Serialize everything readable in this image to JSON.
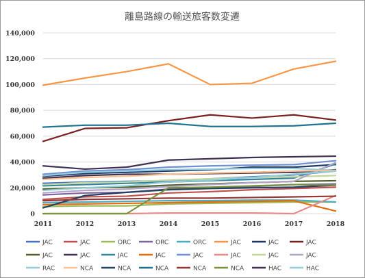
{
  "chart_data": {
    "type": "line",
    "title": "離島路線の輸送旅客数変遷",
    "xlabel": "",
    "ylabel": "",
    "ylim": [
      0,
      140000
    ],
    "y_ticks": [
      0,
      20000,
      40000,
      60000,
      80000,
      100000,
      120000,
      140000
    ],
    "y_tick_labels": [
      "0",
      "20,000",
      "40,000",
      "60,000",
      "80,000",
      "100,000",
      "120,000",
      "140,000"
    ],
    "grid": true,
    "legend_position": "bottom",
    "categories": [
      "2011",
      "2012",
      "2013",
      "2014",
      "2015",
      "2016",
      "2017",
      "2018"
    ],
    "series": [
      {
        "name": "JAC",
        "color": "#4472c4",
        "values": [
          23500,
          24500,
          25000,
          25500,
          27000,
          28500,
          30000,
          33000
        ]
      },
      {
        "name": "JAC",
        "color": "#c0504d",
        "values": [
          11000,
          13000,
          13500,
          16000,
          17000,
          18500,
          19500,
          20500
        ]
      },
      {
        "name": "ORC",
        "color": "#9bbb59",
        "values": [
          5500,
          6000,
          6000,
          7500,
          8000,
          8500,
          9000,
          9000
        ]
      },
      {
        "name": "ORC",
        "color": "#8064a2",
        "values": [
          14500,
          16000,
          16500,
          19000,
          20000,
          21000,
          22500,
          23000
        ]
      },
      {
        "name": "ORC",
        "color": "#4bacc6",
        "values": [
          8500,
          9000,
          9500,
          10000,
          10000,
          10500,
          10500,
          9000
        ]
      },
      {
        "name": "JAC",
        "color": "#f79646",
        "values": [
          99500,
          105000,
          110000,
          116000,
          100000,
          101000,
          112000,
          118000
        ]
      },
      {
        "name": "JAC",
        "color": "#1f3864",
        "values": [
          29000,
          31000,
          32000,
          33000,
          34000,
          36000,
          36000,
          38000
        ]
      },
      {
        "name": "JAC",
        "color": "#7b2020",
        "values": [
          56000,
          66000,
          66500,
          72000,
          76500,
          74000,
          76500,
          72500
        ]
      },
      {
        "name": "JAC",
        "color": "#4f6228",
        "values": [
          19000,
          20000,
          20500,
          22000,
          23000,
          24000,
          25000,
          25500
        ]
      },
      {
        "name": "JAC",
        "color": "#3f3151",
        "values": [
          27500,
          29500,
          30500,
          30500,
          31000,
          31500,
          32000,
          34000
        ]
      },
      {
        "name": "JAC",
        "color": "#31859c",
        "values": [
          21500,
          22500,
          23500,
          24500,
          25500,
          26500,
          27500,
          38500
        ]
      },
      {
        "name": "JAC",
        "color": "#e46c0a",
        "values": [
          7000,
          7500,
          8000,
          8500,
          9000,
          9500,
          10000,
          2000
        ]
      },
      {
        "name": "JAC",
        "color": "#6f8fd6",
        "values": [
          30500,
          33000,
          34000,
          36000,
          37000,
          37500,
          38000,
          41000
        ]
      },
      {
        "name": "JAC",
        "color": "#e58a87",
        "values": [
          0,
          0,
          0,
          500,
          500,
          500,
          0,
          14000
        ]
      },
      {
        "name": "JAC",
        "color": "#c3d69b",
        "values": [
          22500,
          24000,
          24500,
          26000,
          27000,
          28000,
          28500,
          29500
        ]
      },
      {
        "name": "JAC",
        "color": "#b3a2c7",
        "values": [
          16000,
          18000,
          19000,
          21000,
          22500,
          24000,
          25000,
          39500
        ]
      },
      {
        "name": "RAC",
        "color": "#93cddd",
        "values": [
          29500,
          32000,
          33000,
          34000,
          34500,
          35000,
          35000,
          33500
        ]
      },
      {
        "name": "NCA",
        "color": "#fac090",
        "values": [
          26500,
          28000,
          29000,
          30500,
          31500,
          32000,
          33000,
          33500
        ]
      },
      {
        "name": "NCA",
        "color": "#244062",
        "values": [
          4500,
          14000,
          16500,
          18500,
          19500,
          20000,
          20500,
          22000
        ]
      },
      {
        "name": "NCA",
        "color": "#1f7391",
        "values": [
          67000,
          68500,
          68500,
          70000,
          67500,
          67500,
          68000,
          70000
        ]
      },
      {
        "name": "NCA",
        "color": "#953735",
        "values": [
          10000,
          11000,
          11500,
          12000,
          12000,
          12500,
          13000,
          13500
        ]
      },
      {
        "name": "NCA",
        "color": "#77933c",
        "values": [
          0,
          0,
          0,
          20000,
          20500,
          21500,
          22500,
          22000
        ]
      },
      {
        "name": "HAC",
        "color": "#403152",
        "values": [
          37000,
          34500,
          36000,
          41500,
          42500,
          43500,
          44000,
          44500
        ]
      },
      {
        "name": "HAC",
        "color": "#92cddc",
        "values": [
          18000,
          20000,
          21500,
          24500,
          26000,
          28000,
          30500,
          33000
        ]
      }
    ],
    "legend_rows": [
      [
        0,
        1,
        2,
        3,
        4,
        5,
        6,
        7
      ],
      [
        8,
        9,
        10,
        11,
        12,
        13,
        14,
        15
      ],
      [
        16,
        17,
        18,
        19,
        20,
        21,
        22,
        23
      ]
    ]
  }
}
